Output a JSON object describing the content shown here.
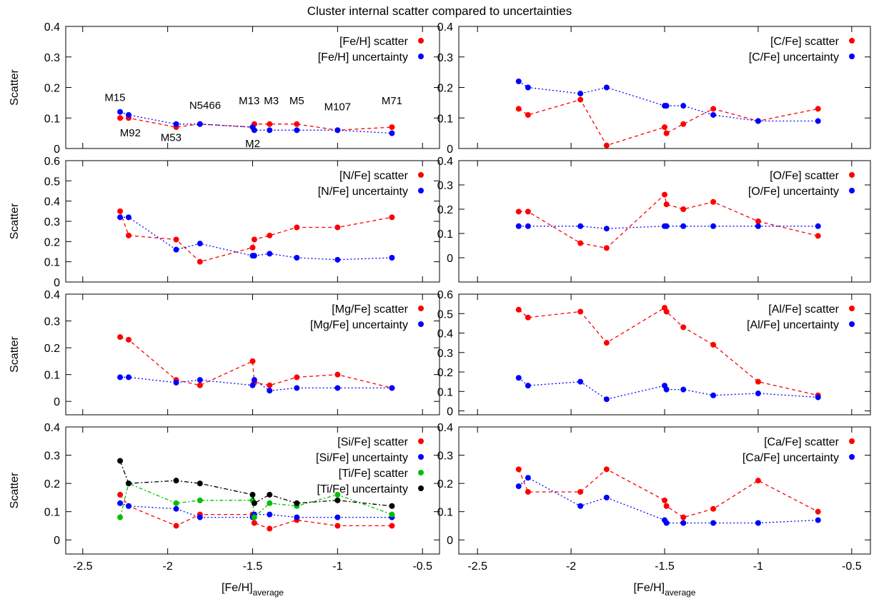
{
  "title": "Cluster internal scatter compared to uncertainties",
  "chart_data": [
    {
      "type": "line",
      "ylabel": "Scatter",
      "ylim": [
        0,
        0.4
      ],
      "yticks": [
        0,
        0.1,
        0.2,
        0.3,
        0.4
      ],
      "xlim": [
        -2.6,
        -0.4
      ],
      "x": [
        -2.28,
        -2.23,
        -1.95,
        -1.81,
        -1.5,
        -1.49,
        -1.4,
        -1.24,
        -1.0,
        -0.68
      ],
      "series": [
        {
          "name": "[Fe/H] scatter",
          "color": "#ff0000",
          "dash": "5,4",
          "values": [
            0.1,
            0.1,
            0.07,
            0.08,
            0.07,
            0.08,
            0.08,
            0.08,
            0.06,
            0.07
          ]
        },
        {
          "name": "[Fe/H] uncertainty",
          "color": "#0000ff",
          "dash": "2,3",
          "values": [
            0.12,
            0.11,
            0.08,
            0.08,
            0.07,
            0.06,
            0.06,
            0.06,
            0.06,
            0.05
          ]
        }
      ],
      "annotations": [
        {
          "text": "M15",
          "x": -2.31,
          "y": 0.155
        },
        {
          "text": "M92",
          "x": -2.22,
          "y": 0.04
        },
        {
          "text": "M53",
          "x": -1.98,
          "y": 0.025
        },
        {
          "text": "N5466",
          "x": -1.78,
          "y": 0.13
        },
        {
          "text": "M13",
          "x": -1.52,
          "y": 0.145
        },
        {
          "text": "M2",
          "x": -1.5,
          "y": 0.005
        },
        {
          "text": "M3",
          "x": -1.39,
          "y": 0.145
        },
        {
          "text": "M5",
          "x": -1.24,
          "y": 0.145
        },
        {
          "text": "M107",
          "x": -1.0,
          "y": 0.125
        },
        {
          "text": "M71",
          "x": -0.68,
          "y": 0.145
        }
      ]
    },
    {
      "type": "line",
      "ylabel": "",
      "ylim": [
        0,
        0.4
      ],
      "yticks": [
        0,
        0.1,
        0.2,
        0.3,
        0.4
      ],
      "xlim": [
        -2.6,
        -0.4
      ],
      "x": [
        -2.28,
        -2.23,
        -1.95,
        -1.81,
        -1.5,
        -1.49,
        -1.4,
        -1.24,
        -1.0,
        -0.68
      ],
      "series": [
        {
          "name": "[C/Fe] scatter",
          "color": "#ff0000",
          "dash": "5,4",
          "values": [
            0.13,
            0.11,
            0.16,
            0.01,
            0.07,
            0.05,
            0.08,
            0.13,
            0.09,
            0.13
          ]
        },
        {
          "name": "[C/Fe] uncertainty",
          "color": "#0000ff",
          "dash": "2,3",
          "values": [
            0.22,
            0.2,
            0.18,
            0.2,
            0.14,
            0.14,
            0.14,
            0.11,
            0.09,
            0.09
          ]
        }
      ]
    },
    {
      "type": "line",
      "ylabel": "Scatter",
      "ylim": [
        0,
        0.6
      ],
      "yticks": [
        0,
        0.1,
        0.2,
        0.3,
        0.4,
        0.5,
        0.6
      ],
      "xlim": [
        -2.6,
        -0.4
      ],
      "x": [
        -2.28,
        -2.23,
        -1.95,
        -1.81,
        -1.5,
        -1.49,
        -1.4,
        -1.24,
        -1.0,
        -0.68
      ],
      "series": [
        {
          "name": "[N/Fe] scatter",
          "color": "#ff0000",
          "dash": "5,4",
          "values": [
            0.35,
            0.23,
            0.21,
            0.1,
            0.17,
            0.21,
            0.23,
            0.27,
            0.27,
            0.32
          ]
        },
        {
          "name": "[N/Fe] uncertainty",
          "color": "#0000ff",
          "dash": "2,3",
          "values": [
            0.32,
            0.32,
            0.16,
            0.19,
            0.13,
            0.13,
            0.14,
            0.12,
            0.11,
            0.12
          ]
        }
      ]
    },
    {
      "type": "line",
      "ylabel": "",
      "ylim": [
        -0.1,
        0.4
      ],
      "yticks": [
        0,
        0.1,
        0.2,
        0.3,
        0.4
      ],
      "xlim": [
        -2.6,
        -0.4
      ],
      "x": [
        -2.28,
        -2.23,
        -1.95,
        -1.81,
        -1.5,
        -1.49,
        -1.4,
        -1.24,
        -1.0,
        -0.68
      ],
      "series": [
        {
          "name": "[O/Fe] scatter",
          "color": "#ff0000",
          "dash": "5,4",
          "values": [
            0.19,
            0.19,
            0.06,
            0.04,
            0.26,
            0.22,
            0.2,
            0.23,
            0.15,
            0.09
          ]
        },
        {
          "name": "[O/Fe] uncertainty",
          "color": "#0000ff",
          "dash": "2,3",
          "values": [
            0.13,
            0.13,
            0.13,
            0.12,
            0.13,
            0.13,
            0.13,
            0.13,
            0.13,
            0.13
          ]
        }
      ]
    },
    {
      "type": "line",
      "ylabel": "Scatter",
      "ylim": [
        -0.05,
        0.4
      ],
      "yticks": [
        0,
        0.1,
        0.2,
        0.3,
        0.4
      ],
      "xlim": [
        -2.6,
        -0.4
      ],
      "x": [
        -2.28,
        -2.23,
        -1.95,
        -1.81,
        -1.5,
        -1.49,
        -1.4,
        -1.24,
        -1.0,
        -0.68
      ],
      "series": [
        {
          "name": "[Mg/Fe] scatter",
          "color": "#ff0000",
          "dash": "5,4",
          "values": [
            0.24,
            0.23,
            0.08,
            0.06,
            0.15,
            0.07,
            0.06,
            0.09,
            0.1,
            0.05
          ]
        },
        {
          "name": "[Mg/Fe] uncertainty",
          "color": "#0000ff",
          "dash": "2,3",
          "values": [
            0.09,
            0.09,
            0.07,
            0.08,
            0.06,
            0.08,
            0.04,
            0.05,
            0.05,
            0.05
          ]
        }
      ]
    },
    {
      "type": "line",
      "ylabel": "",
      "ylim": [
        -0.02,
        0.6
      ],
      "yticks": [
        0,
        0.1,
        0.2,
        0.3,
        0.4,
        0.5,
        0.6
      ],
      "xlim": [
        -2.6,
        -0.4
      ],
      "x": [
        -2.28,
        -2.23,
        -1.95,
        -1.81,
        -1.5,
        -1.49,
        -1.4,
        -1.24,
        -1.0,
        -0.68
      ],
      "series": [
        {
          "name": "[Al/Fe] scatter",
          "color": "#ff0000",
          "dash": "5,4",
          "values": [
            0.52,
            0.48,
            0.51,
            0.35,
            0.53,
            0.51,
            0.43,
            0.34,
            0.15,
            0.08
          ]
        },
        {
          "name": "[Al/Fe] uncertainty",
          "color": "#0000ff",
          "dash": "2,3",
          "values": [
            0.17,
            0.13,
            0.15,
            0.06,
            0.13,
            0.11,
            0.11,
            0.08,
            0.09,
            0.07
          ]
        }
      ]
    },
    {
      "type": "line",
      "ylabel": "Scatter",
      "xlabel": "[Fe/H]",
      "xlabel_sub": "average",
      "ylim": [
        -0.05,
        0.4
      ],
      "yticks": [
        0,
        0.1,
        0.2,
        0.3,
        0.4
      ],
      "xlim": [
        -2.6,
        -0.4
      ],
      "xticks": [
        -2.5,
        -2,
        -1.5,
        -1,
        -0.5
      ],
      "x": [
        -2.28,
        -2.23,
        -1.95,
        -1.81,
        -1.5,
        -1.49,
        -1.4,
        -1.24,
        -1.0,
        -0.68
      ],
      "series": [
        {
          "name": "[Si/Fe] scatter",
          "color": "#ff0000",
          "dash": "5,4",
          "values": [
            0.16,
            0.12,
            0.05,
            0.09,
            0.09,
            0.06,
            0.04,
            0.07,
            0.05,
            0.05
          ]
        },
        {
          "name": "[Si/Fe] uncertainty",
          "color": "#0000ff",
          "dash": "2,3",
          "values": [
            0.13,
            0.12,
            0.11,
            0.08,
            0.08,
            0.09,
            0.09,
            0.08,
            0.08,
            0.08
          ]
        },
        {
          "name": "[Ti/Fe] scatter",
          "color": "#00c000",
          "dash": "5,3,2,3",
          "values": [
            0.08,
            0.2,
            0.13,
            0.14,
            0.14,
            0.08,
            0.13,
            0.12,
            0.16,
            0.09
          ]
        },
        {
          "name": "[Ti/Fe] uncertainty",
          "color": "#000000",
          "dash": "6,3,2,3",
          "values": [
            0.28,
            0.2,
            0.21,
            0.2,
            0.16,
            0.13,
            0.16,
            0.13,
            0.14,
            0.12
          ]
        }
      ]
    },
    {
      "type": "line",
      "ylabel": "",
      "xlabel": "[Fe/H]",
      "xlabel_sub": "average",
      "ylim": [
        -0.05,
        0.4
      ],
      "yticks": [
        0,
        0.1,
        0.2,
        0.3,
        0.4
      ],
      "xlim": [
        -2.6,
        -0.4
      ],
      "xticks": [
        -2.5,
        -2,
        -1.5,
        -1,
        -0.5
      ],
      "x": [
        -2.28,
        -2.23,
        -1.95,
        -1.81,
        -1.5,
        -1.49,
        -1.4,
        -1.24,
        -1.0,
        -0.68
      ],
      "series": [
        {
          "name": "[Ca/Fe] scatter",
          "color": "#ff0000",
          "dash": "5,4",
          "values": [
            0.25,
            0.17,
            0.17,
            0.25,
            0.14,
            0.12,
            0.08,
            0.11,
            0.21,
            0.1
          ]
        },
        {
          "name": "[Ca/Fe] uncertainty",
          "color": "#0000ff",
          "dash": "2,3",
          "values": [
            0.19,
            0.22,
            0.12,
            0.15,
            0.07,
            0.06,
            0.06,
            0.06,
            0.06,
            0.07
          ]
        }
      ]
    }
  ]
}
